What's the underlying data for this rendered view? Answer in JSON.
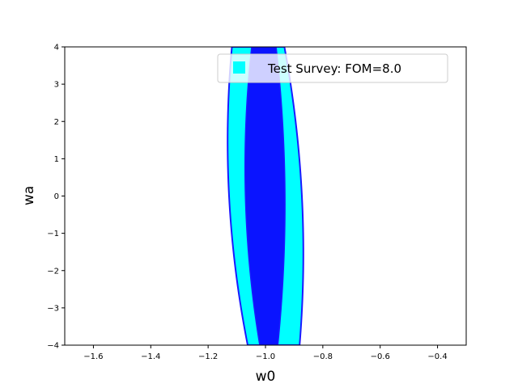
{
  "chart_data": {
    "type": "contour",
    "xlabel": "w0",
    "ylabel": "wa",
    "xlim": [
      -1.7,
      -0.3
    ],
    "ylim": [
      -4,
      4
    ],
    "xticks": [
      -1.6,
      -1.4,
      -1.2,
      -1.0,
      -0.8,
      -0.6,
      -0.4
    ],
    "xtick_labels": [
      "−1.6",
      "−1.4",
      "−1.2",
      "−1.0",
      "−0.8",
      "−0.6",
      "−0.4"
    ],
    "yticks": [
      -4,
      -3,
      -2,
      -1,
      0,
      1,
      2,
      3,
      4
    ],
    "ytick_labels": [
      "−4",
      "−3",
      "−2",
      "−1",
      "0",
      "1",
      "2",
      "3",
      "4"
    ],
    "legend": {
      "label": "Test Survey: FOM=8.0",
      "position": "upper right",
      "color": "#00ffff"
    },
    "ellipse": {
      "center": {
        "w0": -1.0,
        "wa": 0.0
      },
      "edge_color": "#1a1aff",
      "regions": [
        {
          "name": "outer",
          "color": "#00ffff",
          "bottom": [
            -1.062,
            -0.881
          ],
          "mid": [
            -1.127,
            -0.873
          ],
          "top": [
            -1.117,
            -0.934
          ]
        },
        {
          "name": "inner",
          "color": "#0a14ff",
          "bottom": [
            -1.02,
            -0.957
          ],
          "mid": [
            -1.07,
            -0.932
          ],
          "top": [
            -1.048,
            -0.963
          ]
        }
      ]
    },
    "grid": false
  }
}
